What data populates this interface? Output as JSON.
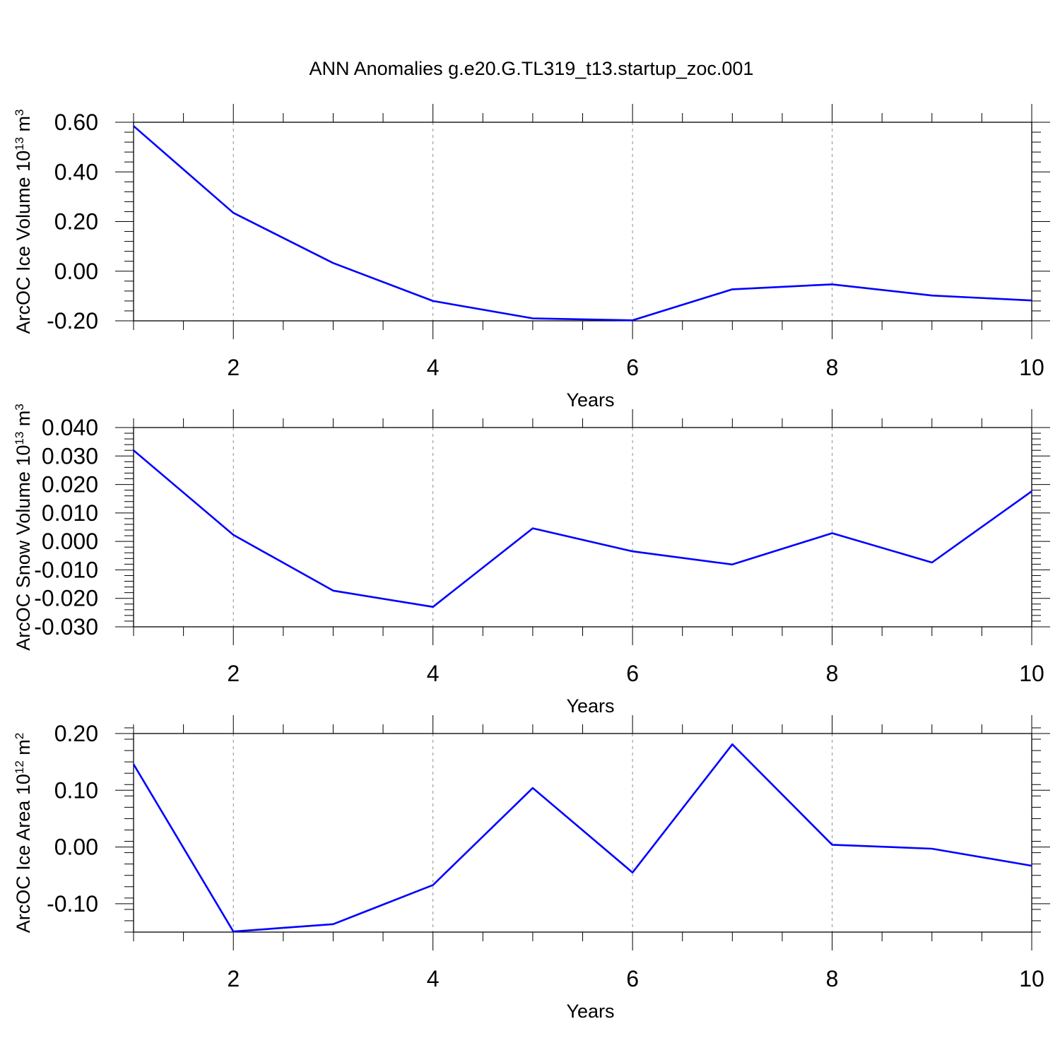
{
  "figure": {
    "title": "ANN Anomalies g.e20.G.TL319_t13.startup_zoc.001"
  },
  "chart_data": [
    {
      "type": "line",
      "title": "",
      "xlabel": "Years",
      "ylabel_parts": [
        "ArcOC Ice Volume 10",
        "13",
        " m",
        "3"
      ],
      "x": [
        1,
        2,
        3,
        4,
        5,
        6,
        7,
        8,
        9,
        10
      ],
      "series": [
        {
          "values": [
            0.585,
            0.235,
            0.033,
            -0.12,
            -0.19,
            -0.198,
            -0.073,
            -0.053,
            -0.098,
            -0.118
          ]
        }
      ],
      "xlim": [
        1,
        10
      ],
      "ylim": [
        -0.2,
        0.6
      ],
      "xticks": [
        2,
        4,
        6,
        8,
        10
      ],
      "xtick_labels": [
        "2",
        "4",
        "6",
        "8",
        "10"
      ],
      "yticks": [
        -0.2,
        0,
        0.2,
        0.4,
        0.6
      ],
      "ytick_labels": [
        "-0.20",
        "0.00",
        "0.20",
        "0.40",
        "0.60"
      ],
      "x_minor_step": 0.5,
      "y_minor_step": 0.04,
      "grid": "vertical-dashed-at-major-x",
      "line_color": "#0000ff"
    },
    {
      "type": "line",
      "title": "",
      "xlabel": "Years",
      "ylabel_parts": [
        "ArcOC Snow Volume 10",
        "13",
        " m",
        "3"
      ],
      "x": [
        1,
        2,
        3,
        4,
        5,
        6,
        7,
        8,
        9,
        10
      ],
      "series": [
        {
          "values": [
            0.032,
            0.0023,
            -0.0173,
            -0.023,
            0.0046,
            -0.0035,
            -0.0081,
            0.0029,
            -0.0074,
            0.0176
          ]
        }
      ],
      "xlim": [
        1,
        10
      ],
      "ylim": [
        -0.03,
        0.04
      ],
      "xticks": [
        2,
        4,
        6,
        8,
        10
      ],
      "xtick_labels": [
        "2",
        "4",
        "6",
        "8",
        "10"
      ],
      "yticks": [
        -0.03,
        -0.02,
        -0.01,
        0,
        0.01,
        0.02,
        0.03,
        0.04
      ],
      "ytick_labels": [
        "-0.030",
        "-0.020",
        "-0.010",
        "0.000",
        "0.010",
        "0.020",
        "0.030",
        "0.040"
      ],
      "x_minor_step": 0.5,
      "y_minor_step": 0.002,
      "grid": "vertical-dashed-at-major-x",
      "line_color": "#0000ff"
    },
    {
      "type": "line",
      "title": "",
      "xlabel": "Years",
      "ylabel_parts": [
        "ArcOC Ice Area 10",
        "12",
        " m",
        "2"
      ],
      "x": [
        1,
        2,
        3,
        4,
        5,
        6,
        7,
        8,
        9,
        10
      ],
      "series": [
        {
          "values": [
            0.146,
            -0.149,
            -0.136,
            -0.067,
            0.104,
            -0.045,
            0.181,
            0.004,
            -0.003,
            -0.033
          ]
        }
      ],
      "xlim": [
        1,
        10
      ],
      "ylim": [
        -0.15,
        0.2
      ],
      "xticks": [
        2,
        4,
        6,
        8,
        10
      ],
      "xtick_labels": [
        "2",
        "4",
        "6",
        "8",
        "10"
      ],
      "yticks": [
        -0.1,
        0,
        0.1,
        0.2
      ],
      "ytick_labels": [
        "-0.10",
        "0.00",
        "0.10",
        "0.20"
      ],
      "x_minor_step": 0.5,
      "y_minor_step": 0.02,
      "grid": "vertical-dashed-at-major-x",
      "line_color": "#0000ff"
    }
  ]
}
